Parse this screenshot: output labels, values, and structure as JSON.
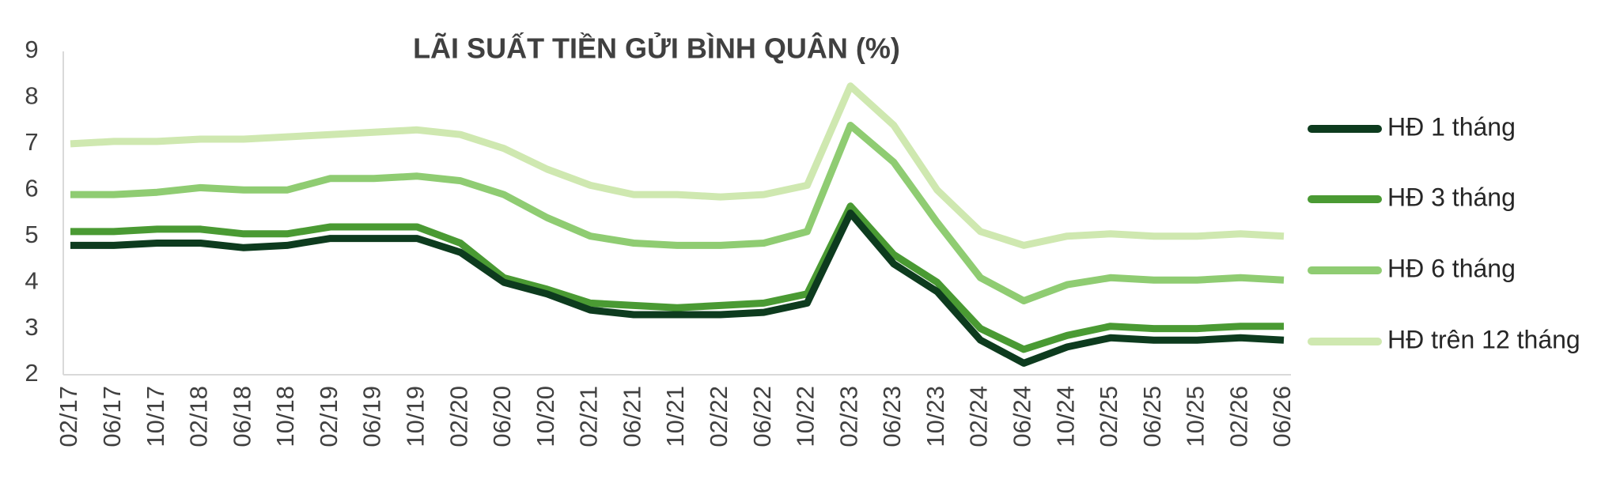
{
  "chart_data": {
    "type": "line",
    "title": "LÃI SUẤT TIỀN GỬI BÌNH QUÂN (%)",
    "categories": [
      "02/17",
      "06/17",
      "10/17",
      "02/18",
      "06/18",
      "10/18",
      "02/19",
      "06/19",
      "10/19",
      "02/20",
      "06/20",
      "10/20",
      "02/21",
      "06/21",
      "10/21",
      "02/22",
      "06/22",
      "10/22",
      "02/23",
      "06/23",
      "10/23",
      "02/24",
      "06/24",
      "10/24",
      "02/25",
      "06/25",
      "10/25",
      "02/26",
      "06/26"
    ],
    "series": [
      {
        "name": "HĐ 1 tháng",
        "color": "#0d3b1e",
        "values": [
          4.8,
          4.8,
          4.85,
          4.85,
          4.75,
          4.8,
          4.95,
          4.95,
          4.95,
          4.65,
          4.0,
          3.75,
          3.4,
          3.3,
          3.3,
          3.3,
          3.35,
          3.55,
          5.5,
          4.4,
          3.8,
          2.75,
          2.25,
          2.6,
          2.8,
          2.75,
          2.75,
          2.8,
          2.75
        ]
      },
      {
        "name": "HĐ 3 tháng",
        "color": "#4a9a33",
        "values": [
          5.1,
          5.1,
          5.15,
          5.15,
          5.05,
          5.05,
          5.2,
          5.2,
          5.2,
          4.85,
          4.1,
          3.85,
          3.55,
          3.5,
          3.45,
          3.5,
          3.55,
          3.75,
          5.65,
          4.6,
          4.0,
          3.0,
          2.55,
          2.85,
          3.05,
          3.0,
          3.0,
          3.05,
          3.05
        ]
      },
      {
        "name": "HĐ 6 tháng",
        "color": "#8fcc72",
        "values": [
          5.9,
          5.9,
          5.95,
          6.05,
          6.0,
          6.0,
          6.25,
          6.25,
          6.3,
          6.2,
          5.9,
          5.4,
          5.0,
          4.85,
          4.8,
          4.8,
          4.85,
          5.1,
          7.4,
          6.6,
          5.3,
          4.1,
          3.6,
          3.95,
          4.1,
          4.05,
          4.05,
          4.1,
          4.05
        ]
      },
      {
        "name": "HĐ trên 12 tháng",
        "color": "#cfe8b0",
        "values": [
          7.0,
          7.05,
          7.05,
          7.1,
          7.1,
          7.15,
          7.2,
          7.25,
          7.3,
          7.2,
          6.9,
          6.45,
          6.1,
          5.9,
          5.9,
          5.85,
          5.9,
          6.1,
          8.25,
          7.4,
          6.0,
          5.1,
          4.8,
          5.0,
          5.05,
          5.0,
          5.0,
          5.05,
          5.0
        ]
      }
    ],
    "ylim": [
      2,
      9
    ],
    "yticks": [
      2,
      3,
      4,
      5,
      6,
      7,
      8,
      9
    ],
    "grid": false,
    "legend": "right"
  }
}
